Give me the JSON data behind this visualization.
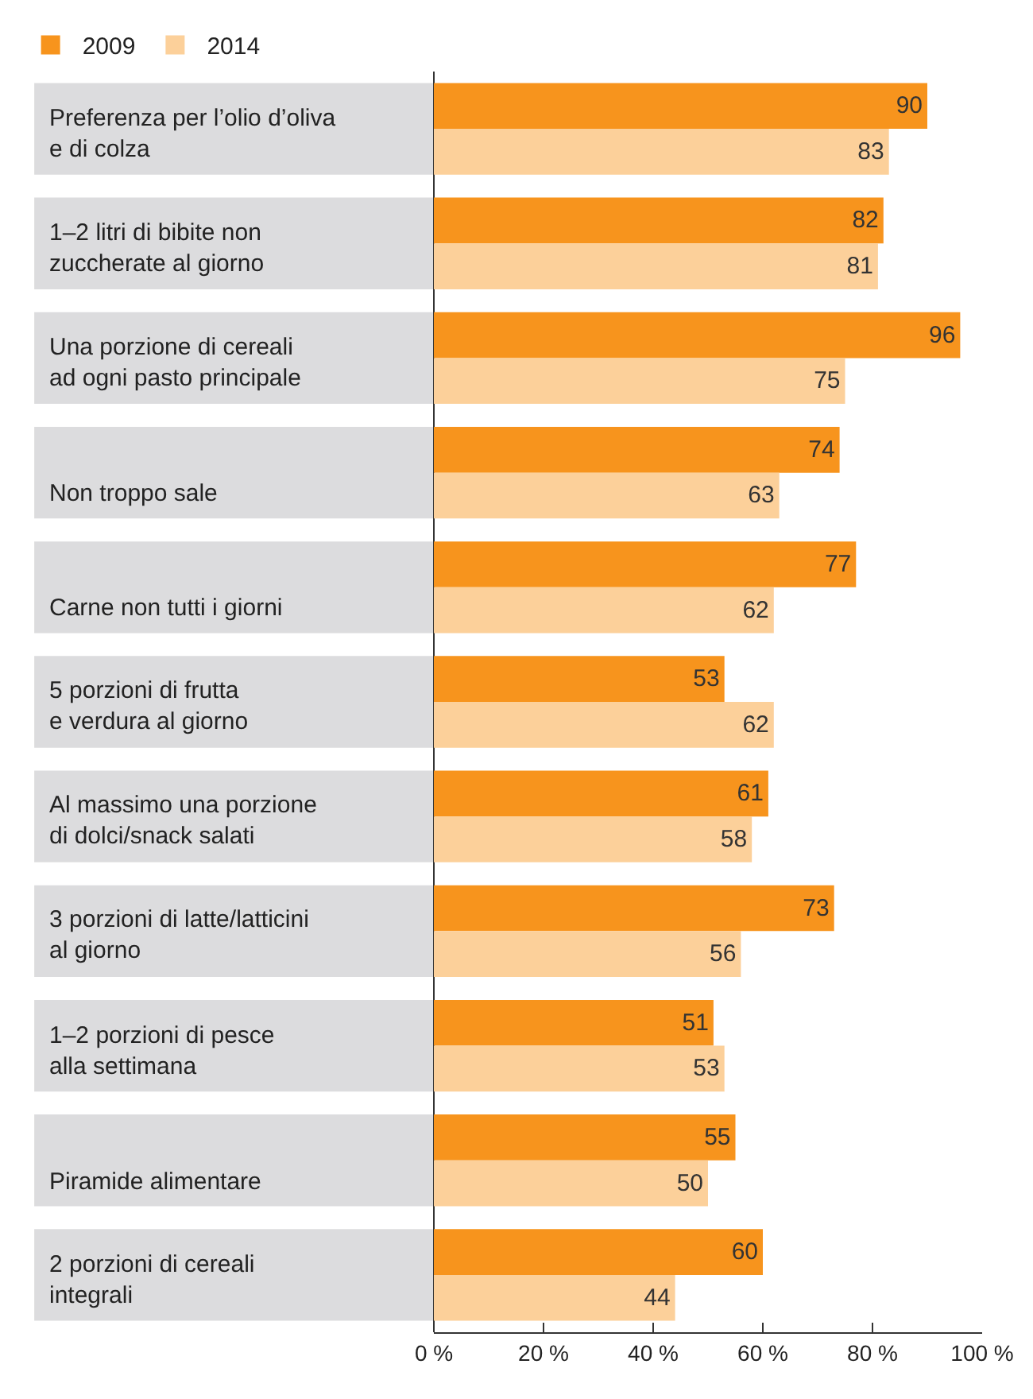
{
  "chart_data": {
    "type": "bar",
    "orientation": "horizontal",
    "categories": [
      "Preferenza per l’olio d’oliva\ne di colza",
      "1–2 litri di bibite non\nzuccherate al giorno",
      "Una porzione di cereali\nad ogni pasto principale",
      "Non troppo sale",
      "Carne non tutti i giorni",
      "5 porzioni di frutta\ne verdura al giorno",
      "Al massimo una porzione\ndi dolci/snack salati",
      "3 porzioni di latte/latticini\nal giorno",
      "1–2 porzioni di pesce\nalla settimana",
      "Piramide alimentare",
      "2 porzioni di cereali\nintegrali"
    ],
    "series": [
      {
        "name": "2009",
        "color": "#f7941d",
        "values": [
          90,
          82,
          96,
          74,
          77,
          53,
          61,
          73,
          51,
          55,
          60
        ]
      },
      {
        "name": "2014",
        "color": "#fcd09a",
        "values": [
          83,
          81,
          75,
          63,
          62,
          62,
          58,
          56,
          53,
          50,
          44
        ]
      }
    ],
    "xlim": [
      0,
      100
    ],
    "xticks": [
      {
        "value": 0,
        "label": "0 %"
      },
      {
        "value": 20,
        "label": "20 %"
      },
      {
        "value": 40,
        "label": "40 %"
      },
      {
        "value": 60,
        "label": "60 %"
      },
      {
        "value": 80,
        "label": "80 %"
      },
      {
        "value": 100,
        "label": "100 %"
      }
    ],
    "data_labels": true,
    "legend": "top left"
  }
}
